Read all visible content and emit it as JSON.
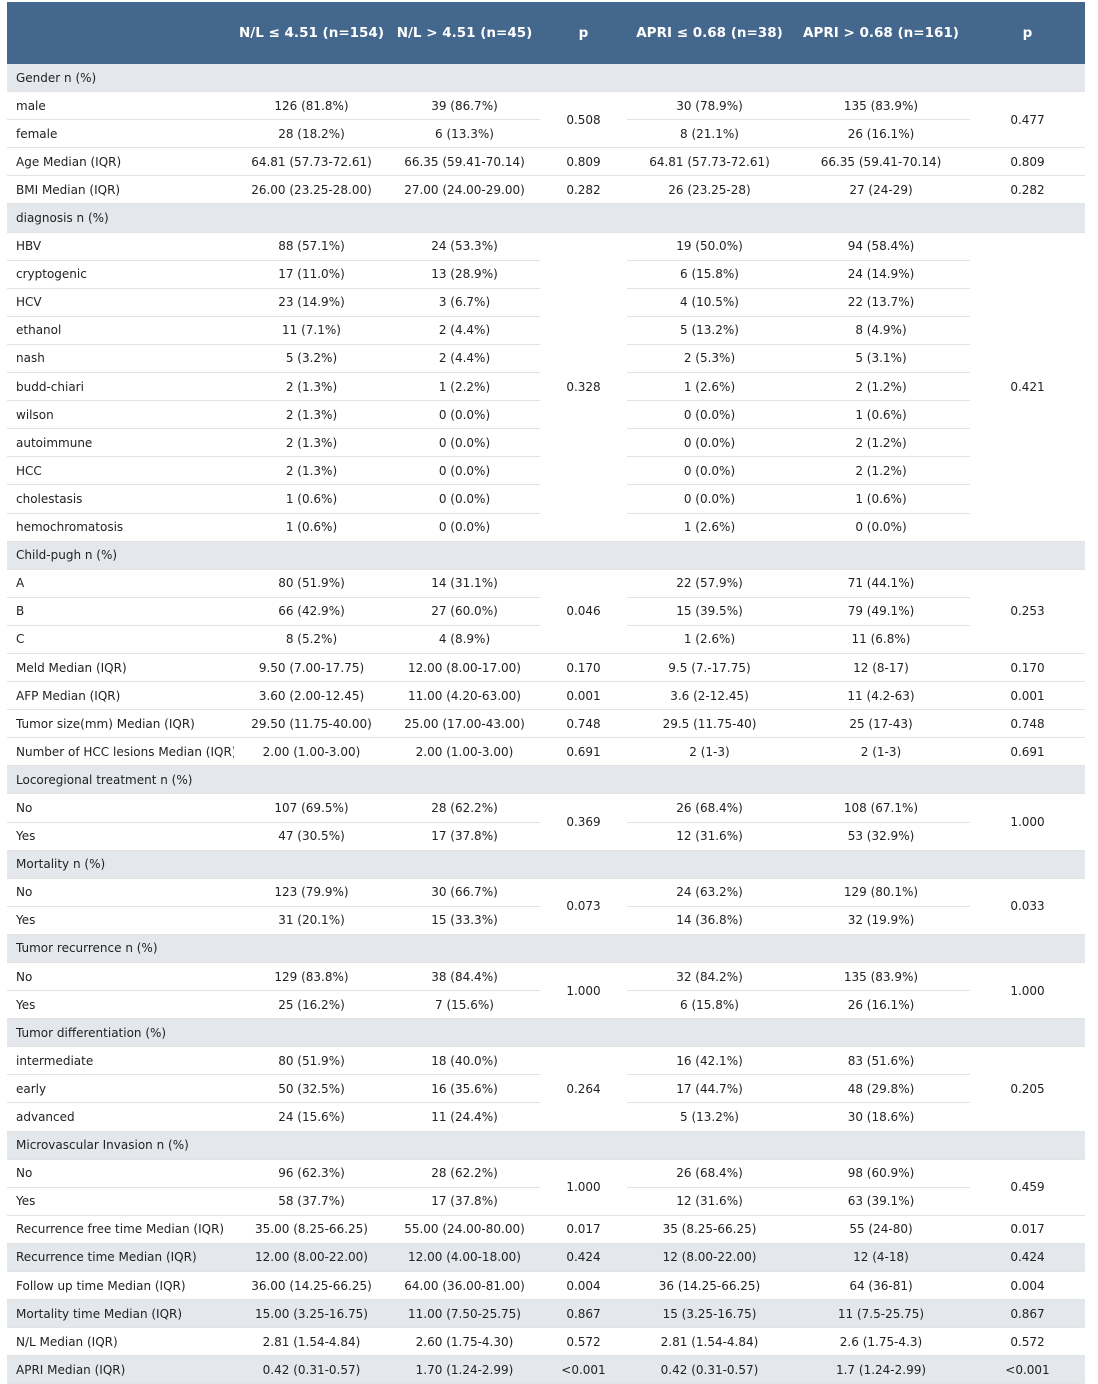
{
  "header": [
    "",
    "N/L ≤ 4.51 (n=154)",
    "N/L > 4.51 (n=45)",
    "p",
    "APRI ≤ 0.68 (n=38)",
    "APRI > 0.68 (n=161)",
    "p"
  ],
  "rows": [
    {
      "type": "section",
      "label": "Gender n (%)"
    },
    {
      "label": "male",
      "c1": "126 (81.8%)",
      "c2": "39 (86.7%)",
      "p1": "0.508",
      "p1span": 2,
      "c3": "30 (78.9%)",
      "c4": "135 (83.9%)",
      "p2": "0.477",
      "p2span": 2
    },
    {
      "label": "female",
      "c1": "28 (18.2%)",
      "c2": "6 (13.3%)",
      "c3": "8 (21.1%)",
      "c4": "26 (16.1%)"
    },
    {
      "label": "Age Median (IQR)",
      "c1": "64.81 (57.73-72.61)",
      "c2": "66.35 (59.41-70.14)",
      "p1": "0.809",
      "c3": "64.81 (57.73-72.61)",
      "c4": "66.35 (59.41-70.14)",
      "p2": "0.809"
    },
    {
      "label": "BMI Median (IQR)",
      "c1": "26.00 (23.25-28.00)",
      "c2": "27.00 (24.00-29.00)",
      "p1": "0.282",
      "c3": "26 (23.25-28)",
      "c4": "27 (24-29)",
      "p2": "0.282"
    },
    {
      "type": "section",
      "label": "diagnosis n (%)"
    },
    {
      "label": "HBV",
      "c1": "88 (57.1%)",
      "c2": "24 (53.3%)",
      "p1": "0.328",
      "p1span": 11,
      "c3": "19 (50.0%)",
      "c4": "94 (58.4%)",
      "p2": "0.421",
      "p2span": 11
    },
    {
      "label": "cryptogenic",
      "c1": "17 (11.0%)",
      "c2": "13 (28.9%)",
      "c3": "6 (15.8%)",
      "c4": "24 (14.9%)"
    },
    {
      "label": "HCV",
      "c1": "23 (14.9%)",
      "c2": "3 (6.7%)",
      "c3": "4 (10.5%)",
      "c4": "22 (13.7%)"
    },
    {
      "label": "ethanol",
      "c1": "11 (7.1%)",
      "c2": "2 (4.4%)",
      "c3": "5 (13.2%)",
      "c4": "8 (4.9%)"
    },
    {
      "label": "nash",
      "c1": "5 (3.2%)",
      "c2": "2 (4.4%)",
      "c3": "2 (5.3%)",
      "c4": "5 (3.1%)"
    },
    {
      "label": "budd-chiari",
      "c1": "2 (1.3%)",
      "c2": "1 (2.2%)",
      "c3": "1 (2.6%)",
      "c4": "2 (1.2%)"
    },
    {
      "label": "wilson",
      "c1": "2 (1.3%)",
      "c2": "0 (0.0%)",
      "c3": "0 (0.0%)",
      "c4": "1 (0.6%)"
    },
    {
      "label": "autoimmune",
      "c1": "2 (1.3%)",
      "c2": "0 (0.0%)",
      "c3": "0 (0.0%)",
      "c4": "2 (1.2%)"
    },
    {
      "label": "HCC",
      "c1": "2 (1.3%)",
      "c2": "0 (0.0%)",
      "c3": "0 (0.0%)",
      "c4": "2 (1.2%)"
    },
    {
      "label": "cholestasis",
      "c1": "1 (0.6%)",
      "c2": "0 (0.0%)",
      "c3": "0 (0.0%)",
      "c4": "1 (0.6%)"
    },
    {
      "label": "hemochromatosis",
      "c1": "1 (0.6%)",
      "c2": "0 (0.0%)",
      "c3": "1 (2.6%)",
      "c4": "0 (0.0%)"
    },
    {
      "type": "section",
      "label": "Child-pugh n (%)"
    },
    {
      "label": "A",
      "c1": "80 (51.9%)",
      "c2": "14 (31.1%)",
      "p1": "0.046",
      "p1span": 3,
      "c3": "22 (57.9%)",
      "c4": "71 (44.1%)",
      "p2": "0.253",
      "p2span": 3
    },
    {
      "label": "B",
      "c1": "66 (42.9%)",
      "c2": "27 (60.0%)",
      "c3": "15 (39.5%)",
      "c4": "79 (49.1%)"
    },
    {
      "label": "C",
      "c1": "8 (5.2%)",
      "c2": "4 (8.9%)",
      "c3": "1 (2.6%)",
      "c4": "11 (6.8%)"
    },
    {
      "label": "Meld Median (IQR)",
      "c1": "9.50 (7.00-17.75)",
      "c2": "12.00 (8.00-17.00)",
      "p1": "0.170",
      "c3": "9.5 (7.-17.75)",
      "c4": "12 (8-17)",
      "p2": "0.170"
    },
    {
      "label": "AFP Median (IQR)",
      "c1": "3.60 (2.00-12.45)",
      "c2": "11.00 (4.20-63.00)",
      "p1": "0.001",
      "c3": "3.6 (2-12.45)",
      "c4": "11 (4.2-63)",
      "p2": "0.001"
    },
    {
      "label": "Tumor size(mm) Median (IQR)",
      "c1": "29.50 (11.75-40.00)",
      "c2": "25.00 (17.00-43.00)",
      "p1": "0.748",
      "c3": "29.5 (11.75-40)",
      "c4": "25 (17-43)",
      "p2": "0.748"
    },
    {
      "label": "Number of HCC lesions Median (IQR)",
      "c1": "2.00 (1.00-3.00)",
      "c2": "2.00 (1.00-3.00)",
      "p1": "0.691",
      "c3": "2 (1-3)",
      "c4": "2 (1-3)",
      "p2": "0.691"
    },
    {
      "type": "section",
      "label": "Locoregional treatment n (%)"
    },
    {
      "label": "No",
      "c1": "107 (69.5%)",
      "c2": "28 (62.2%)",
      "p1": "0.369",
      "p1span": 2,
      "c3": "26 (68.4%)",
      "c4": "108 (67.1%)",
      "p2": "1.000",
      "p2span": 2
    },
    {
      "label": "Yes",
      "c1": "47 (30.5%)",
      "c2": "17 (37.8%)",
      "c3": "12 (31.6%)",
      "c4": "53 (32.9%)"
    },
    {
      "type": "section",
      "label": "Mortality n (%)"
    },
    {
      "label": "No",
      "c1": "123 (79.9%)",
      "c2": "30 (66.7%)",
      "p1": "0.073",
      "p1span": 2,
      "c3": "24 (63.2%)",
      "c4": "129 (80.1%)",
      "p2": "0.033",
      "p2span": 2
    },
    {
      "label": "Yes",
      "c1": "31 (20.1%)",
      "c2": "15 (33.3%)",
      "c3": "14 (36.8%)",
      "c4": "32 (19.9%)"
    },
    {
      "type": "section",
      "label": "Tumor recurrence n (%)"
    },
    {
      "label": "No",
      "c1": "129 (83.8%)",
      "c2": "38 (84.4%)",
      "p1": "1.000",
      "p1span": 2,
      "c3": "32 (84.2%)",
      "c4": "135 (83.9%)",
      "p2": "1.000",
      "p2span": 2
    },
    {
      "label": "Yes",
      "c1": "25 (16.2%)",
      "c2": "7 (15.6%)",
      "c3": "6 (15.8%)",
      "c4": "26 (16.1%)"
    },
    {
      "type": "section",
      "label": "Tumor differentiation (%)"
    },
    {
      "label": "intermediate",
      "c1": "80 (51.9%)",
      "c2": "18 (40.0%)",
      "p1": "0.264",
      "p1span": 3,
      "c3": "16 (42.1%)",
      "c4": "83 (51.6%)",
      "p2": "0.205",
      "p2span": 3
    },
    {
      "label": "early",
      "c1": "50 (32.5%)",
      "c2": "16 (35.6%)",
      "c3": "17 (44.7%)",
      "c4": "48 (29.8%)"
    },
    {
      "label": "advanced",
      "c1": "24 (15.6%)",
      "c2": "11 (24.4%)",
      "c3": "5 (13.2%)",
      "c4": "30 (18.6%)"
    },
    {
      "type": "section",
      "label": "Microvascular Invasion n (%)"
    },
    {
      "label": "No",
      "c1": "96 (62.3%)",
      "c2": "28 (62.2%)",
      "p1": "1.000",
      "p1span": 2,
      "c3": "26 (68.4%)",
      "c4": "98 (60.9%)",
      "p2": "0.459",
      "p2span": 2
    },
    {
      "label": "Yes",
      "c1": "58 (37.7%)",
      "c2": "17 (37.8%)",
      "c3": "12 (31.6%)",
      "c4": "63 (39.1%)"
    },
    {
      "label": "Recurrence free time Median (IQR)",
      "c1": "35.00 (8.25-66.25)",
      "c2": "55.00 (24.00-80.00)",
      "p1": "0.017",
      "c3": "35 (8.25-66.25)",
      "c4": "55 (24-80)",
      "p2": "0.017"
    },
    {
      "type": "shaded",
      "label": "Recurrence time Median (IQR)",
      "c1": "12.00 (8.00-22.00)",
      "c2": "12.00 (4.00-18.00)",
      "p1": "0.424",
      "c3": "12 (8.00-22.00)",
      "c4": "12 (4-18)",
      "p2": "0.424"
    },
    {
      "label": "Follow up time Median (IQR)",
      "c1": "36.00 (14.25-66.25)",
      "c2": "64.00 (36.00-81.00)",
      "p1": "0.004",
      "c3": "36 (14.25-66.25)",
      "c4": "64 (36-81)",
      "p2": "0.004"
    },
    {
      "type": "shaded",
      "label": "Mortality time Median (IQR)",
      "c1": "15.00 (3.25-16.75)",
      "c2": "11.00 (7.50-25.75)",
      "p1": "0.867",
      "c3": "15 (3.25-16.75)",
      "c4": "11 (7.5-25.75)",
      "p2": "0.867"
    },
    {
      "label": "N/L Median (IQR)",
      "c1": "2.81 (1.54-4.84)",
      "c2": "2.60 (1.75-4.30)",
      "p1": "0.572",
      "c3": "2.81 (1.54-4.84)",
      "c4": "2.6 (1.75-4.3)",
      "p2": "0.572"
    },
    {
      "type": "shaded",
      "label": "APRI Median (IQR)",
      "c1": "0.42 (0.31-0.57)",
      "c2": "1.70 (1.24-2.99)",
      "p1": "<0.001",
      "c3": "0.42 (0.31-0.57)",
      "c4": "1.7 (1.24-2.99)",
      "p2": "<0.001"
    }
  ]
}
